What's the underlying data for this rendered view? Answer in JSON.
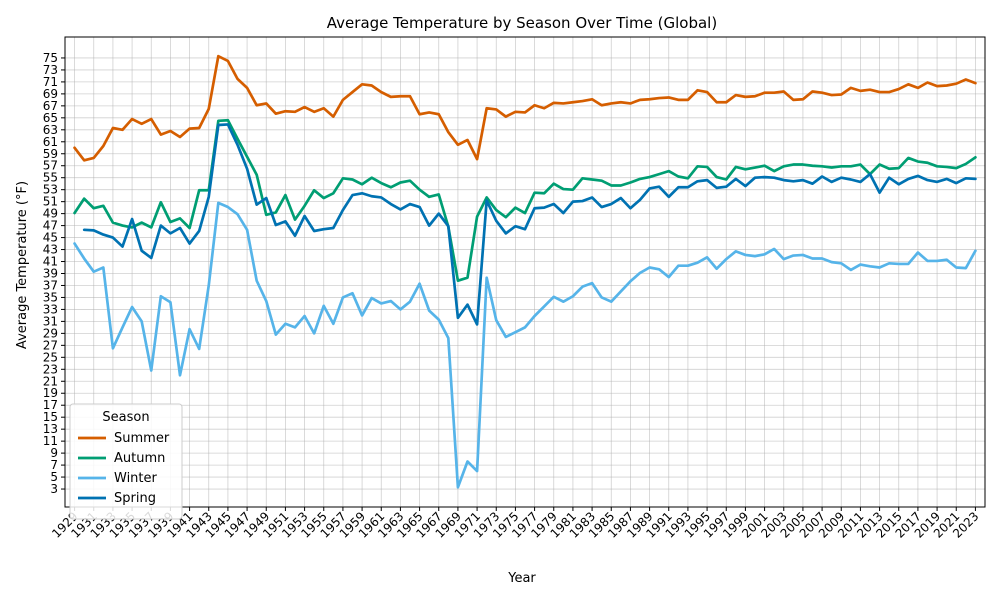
{
  "chart_data": {
    "type": "line",
    "title": "Average Temperature by Season Over Time (Global)",
    "xlabel": "Year",
    "ylabel": "Average Temperature (°F)",
    "x": [
      1929,
      1930,
      1931,
      1932,
      1933,
      1934,
      1935,
      1936,
      1937,
      1938,
      1939,
      1940,
      1941,
      1942,
      1943,
      1944,
      1945,
      1946,
      1947,
      1948,
      1949,
      1950,
      1951,
      1952,
      1953,
      1954,
      1955,
      1956,
      1957,
      1958,
      1959,
      1960,
      1961,
      1962,
      1963,
      1964,
      1965,
      1966,
      1967,
      1968,
      1969,
      1970,
      1971,
      1972,
      1973,
      1974,
      1975,
      1976,
      1977,
      1978,
      1979,
      1980,
      1981,
      1982,
      1983,
      1984,
      1985,
      1986,
      1987,
      1988,
      1989,
      1990,
      1991,
      1992,
      1993,
      1994,
      1995,
      1996,
      1997,
      1998,
      1999,
      2000,
      2001,
      2002,
      2003,
      2004,
      2005,
      2006,
      2007,
      2008,
      2009,
      2010,
      2011,
      2012,
      2013,
      2014,
      2015,
      2016,
      2017,
      2018,
      2019,
      2020,
      2021,
      2022,
      2023
    ],
    "xticks": [
      1929,
      1931,
      1933,
      1935,
      1937,
      1939,
      1941,
      1943,
      1945,
      1947,
      1949,
      1951,
      1953,
      1955,
      1957,
      1959,
      1961,
      1963,
      1965,
      1967,
      1969,
      1971,
      1973,
      1975,
      1977,
      1979,
      1981,
      1983,
      1985,
      1987,
      1989,
      1991,
      1993,
      1995,
      1997,
      1999,
      2001,
      2003,
      2005,
      2007,
      2009,
      2011,
      2013,
      2015,
      2017,
      2019,
      2021,
      2023
    ],
    "xlim": [
      1928.0,
      2024.0
    ],
    "yticks": [
      3,
      5,
      7,
      9,
      11,
      13,
      15,
      17,
      19,
      21,
      23,
      25,
      27,
      29,
      31,
      33,
      35,
      37,
      39,
      41,
      43,
      45,
      47,
      49,
      51,
      53,
      55,
      57,
      59,
      61,
      63,
      65,
      67,
      69,
      71,
      73,
      75
    ],
    "ylim": [
      0.0,
      78.5
    ],
    "grid": true,
    "legend": {
      "title": "Season",
      "position": "lower-left"
    },
    "series": [
      {
        "name": "Summer",
        "color": "#d55e00",
        "values": [
          60.0,
          57.9,
          58.3,
          60.3,
          63.3,
          63.0,
          64.8,
          64.0,
          64.8,
          62.2,
          62.8,
          61.8,
          63.2,
          63.3,
          66.5,
          75.3,
          74.5,
          71.5,
          70.0,
          67.1,
          67.4,
          65.7,
          66.1,
          66.0,
          66.8,
          66.0,
          66.6,
          65.2,
          68.0,
          69.3,
          70.6,
          70.4,
          69.3,
          68.5,
          68.6,
          68.6,
          65.6,
          65.9,
          65.6,
          62.6,
          60.5,
          61.3,
          58.1,
          66.6,
          66.4,
          65.2,
          66.0,
          65.9,
          67.1,
          66.6,
          67.5,
          67.4,
          67.6,
          67.8,
          68.1,
          67.1,
          67.4,
          67.6,
          67.4,
          68.0,
          68.1,
          68.3,
          68.4,
          68.0,
          68.0,
          69.6,
          69.3,
          67.6,
          67.6,
          68.8,
          68.5,
          68.6,
          69.2,
          69.2,
          69.4,
          68.0,
          68.1,
          69.4,
          69.2,
          68.8,
          68.9,
          70.0,
          69.5,
          69.7,
          69.3,
          69.3,
          69.8,
          70.6,
          70.0,
          70.9,
          70.3,
          70.4,
          70.7,
          71.4,
          70.8
        ]
      },
      {
        "name": "Autumn",
        "color": "#009e73",
        "values": [
          49.1,
          51.5,
          49.9,
          50.3,
          47.5,
          47.0,
          46.7,
          47.5,
          46.7,
          50.9,
          47.6,
          48.2,
          46.6,
          52.9,
          52.9,
          64.5,
          64.6,
          61.5,
          58.5,
          55.5,
          48.8,
          49.2,
          52.1,
          48.0,
          50.3,
          52.9,
          51.6,
          52.4,
          54.9,
          54.7,
          53.9,
          55.0,
          54.1,
          53.4,
          54.2,
          54.5,
          53.0,
          51.8,
          52.2,
          46.8,
          37.8,
          38.3,
          48.5,
          51.7,
          49.6,
          48.4,
          50.0,
          49.1,
          52.5,
          52.4,
          54.0,
          53.1,
          53.0,
          54.9,
          54.7,
          54.5,
          53.7,
          53.7,
          54.2,
          54.8,
          55.1,
          55.6,
          56.1,
          55.2,
          54.9,
          56.9,
          56.8,
          55.1,
          54.7,
          56.8,
          56.4,
          56.7,
          57.0,
          56.1,
          56.9,
          57.2,
          57.2,
          57.0,
          56.9,
          56.7,
          56.9,
          56.9,
          57.2,
          55.6,
          57.2,
          56.5,
          56.6,
          58.3,
          57.7,
          57.5,
          56.9,
          56.8,
          56.6,
          57.3,
          58.4
        ]
      },
      {
        "name": "Winter",
        "color": "#56b4e9",
        "values": [
          44.0,
          41.5,
          39.3,
          40.0,
          26.5,
          30.0,
          33.4,
          31.0,
          22.8,
          35.2,
          34.2,
          22.0,
          29.7,
          26.4,
          37.0,
          50.8,
          50.1,
          48.9,
          46.3,
          37.8,
          34.4,
          28.8,
          30.6,
          30.0,
          31.9,
          29.0,
          33.6,
          30.6,
          35.0,
          35.7,
          32.0,
          34.9,
          34.0,
          34.4,
          33.0,
          34.3,
          37.3,
          32.8,
          31.3,
          28.2,
          3.3,
          7.6,
          6.0,
          38.3,
          31.2,
          28.4,
          29.2,
          30.0,
          31.9,
          33.5,
          35.1,
          34.3,
          35.2,
          36.8,
          37.4,
          35.0,
          34.3,
          36.0,
          37.7,
          39.1,
          40.0,
          39.7,
          38.4,
          40.3,
          40.3,
          40.8,
          41.7,
          39.8,
          41.4,
          42.7,
          42.1,
          41.9,
          42.2,
          43.1,
          41.4,
          42.0,
          42.1,
          41.5,
          41.5,
          40.9,
          40.7,
          39.6,
          40.5,
          40.2,
          40.0,
          40.7,
          40.6,
          40.6,
          42.5,
          41.1,
          41.1,
          41.3,
          40.0,
          39.9,
          42.8
        ]
      },
      {
        "name": "Spring",
        "color": "#0072b2",
        "values": [
          null,
          46.3,
          46.2,
          45.5,
          45.0,
          43.5,
          48.1,
          42.8,
          41.6,
          47.0,
          45.7,
          46.6,
          44.0,
          46.1,
          51.8,
          63.8,
          63.9,
          60.5,
          56.5,
          50.5,
          51.6,
          47.1,
          47.7,
          45.3,
          48.6,
          46.1,
          46.4,
          46.6,
          49.6,
          52.1,
          52.4,
          51.9,
          51.7,
          50.6,
          49.7,
          50.6,
          50.1,
          47.0,
          49.0,
          46.9,
          31.6,
          33.8,
          30.5,
          51.2,
          47.8,
          45.7,
          46.9,
          46.4,
          49.9,
          50.0,
          50.6,
          49.1,
          51.0,
          51.1,
          51.7,
          50.1,
          50.6,
          51.6,
          49.9,
          51.3,
          53.2,
          53.5,
          51.8,
          53.4,
          53.4,
          54.4,
          54.6,
          53.3,
          53.5,
          54.8,
          53.6,
          55.0,
          55.1,
          55.0,
          54.6,
          54.4,
          54.6,
          54.0,
          55.2,
          54.3,
          55.0,
          54.7,
          54.3,
          55.6,
          52.5,
          55.0,
          53.9,
          54.8,
          55.3,
          54.6,
          54.3,
          54.8,
          54.1,
          54.9,
          54.8
        ]
      }
    ]
  }
}
